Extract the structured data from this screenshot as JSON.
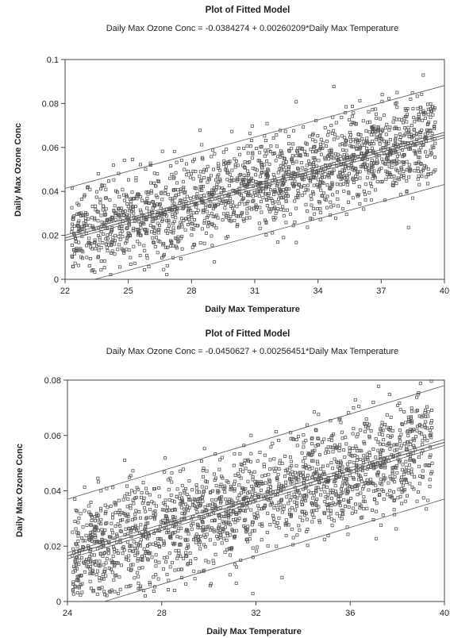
{
  "chart_data": [
    {
      "type": "scatter",
      "title": "Plot of Fitted Model",
      "subtitle": "Daily Max Ozone Conc = -0.0384274 + 0.00260209*Daily Max Temperature",
      "xlabel": "Daily Max Temperature",
      "ylabel": "Daily Max Ozone Conc",
      "xlim": [
        22,
        40
      ],
      "ylim": [
        0,
        0.1
      ],
      "xticks": [
        "22",
        "25",
        "28",
        "31",
        "34",
        "37",
        "40"
      ],
      "yticks": [
        "0",
        "0.02",
        "0.04",
        "0.06",
        "0.08",
        "0.1"
      ],
      "fit": {
        "intercept": -0.0384274,
        "slope": 0.00260209
      },
      "confidence_band": 0.0012,
      "prediction_band": 0.0225,
      "scatter_range": [
        22.3,
        39.6
      ],
      "noise_sd": 0.0105,
      "point_count": 1800
    },
    {
      "type": "scatter",
      "title": "Plot of Fitted Model",
      "subtitle": "Daily Max Ozone Conc = -0.0450627 + 0.00256451*Daily Max Temperature",
      "xlabel": "Daily Max Temperature",
      "ylabel": "Daily Max Ozone Conc",
      "xlim": [
        24,
        40
      ],
      "ylim": [
        0,
        0.08
      ],
      "xticks": [
        "24",
        "28",
        "32",
        "36",
        "40"
      ],
      "yticks": [
        "0",
        "0.02",
        "0.04",
        "0.06",
        "0.08"
      ],
      "fit": {
        "intercept": -0.0450627,
        "slope": 0.00256451
      },
      "confidence_band": 0.0011,
      "prediction_band": 0.0205,
      "scatter_range": [
        24.2,
        39.5
      ],
      "noise_sd": 0.0098,
      "point_count": 1800
    }
  ]
}
